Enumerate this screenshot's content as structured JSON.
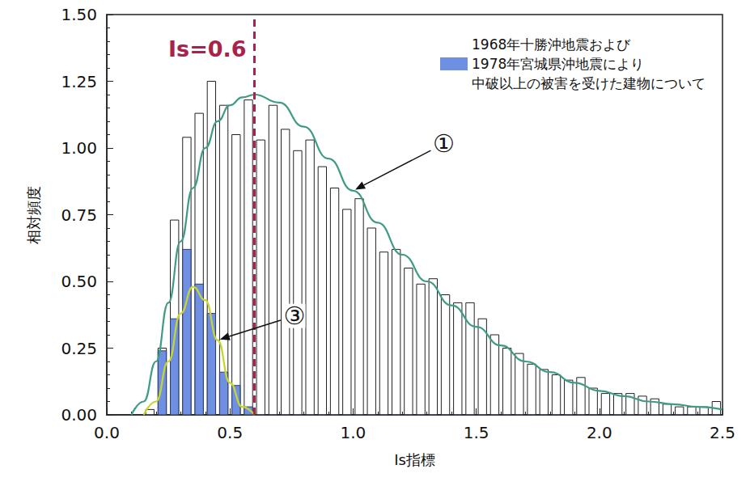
{
  "chart_data": {
    "type": "histogram",
    "bins": [
      0.15,
      0.2,
      0.25,
      0.3,
      0.35,
      0.4,
      0.45,
      0.5,
      0.55,
      0.6,
      0.65,
      0.7,
      0.75,
      0.8,
      0.85,
      0.9,
      0.95,
      1.0,
      1.05,
      1.1,
      1.15,
      1.2,
      1.25,
      1.3,
      1.35,
      1.4,
      1.45,
      1.5,
      1.55,
      1.6,
      1.65,
      1.7,
      1.75,
      1.8,
      1.85,
      1.9,
      1.95,
      2.0,
      2.05,
      2.1,
      2.15,
      2.2,
      2.25,
      2.3,
      2.35,
      2.4,
      2.45,
      2.5
    ],
    "series": [
      {
        "type": "histogram",
        "color": "#ffffff",
        "values": [
          0.02,
          0.25,
          0.73,
          1.04,
          1.13,
          1.25,
          1.16,
          1.05,
          1.18,
          1.03,
          1.16,
          1.07,
          0.99,
          1.03,
          0.93,
          0.85,
          0.77,
          0.81,
          0.7,
          0.61,
          0.62,
          0.55,
          0.49,
          0.51,
          0.45,
          0.42,
          0.42,
          0.36,
          0.3,
          0.25,
          0.23,
          0.19,
          0.17,
          0.15,
          0.13,
          0.14,
          0.1,
          0.08,
          0.08,
          0.08,
          0.07,
          0.06,
          0.04,
          0.03,
          0.03,
          0.03,
          0.05
        ]
      },
      {
        "type": "histogram",
        "name": "1968年十勝沖地震および\n1978年宮城県沖地震により\n中破以上の被害を受けた建物について",
        "color": "#6f8fe2",
        "values": [
          0,
          0.24,
          0.36,
          0.62,
          0.49,
          0.38,
          0.16,
          0.11,
          0.03,
          0,
          0,
          0,
          0,
          0,
          0,
          0,
          0,
          0,
          0,
          0,
          0,
          0,
          0,
          0,
          0,
          0,
          0,
          0,
          0,
          0,
          0,
          0,
          0,
          0,
          0,
          0,
          0,
          0,
          0,
          0,
          0,
          0,
          0,
          0,
          0,
          0,
          0
        ]
      },
      {
        "type": "line",
        "label": "①",
        "color": "#3f9b86",
        "x": [
          0.1,
          0.15,
          0.2,
          0.25,
          0.3,
          0.35,
          0.4,
          0.45,
          0.5,
          0.55,
          0.6,
          0.7,
          0.8,
          0.9,
          1.0,
          1.1,
          1.2,
          1.3,
          1.4,
          1.5,
          1.6,
          1.7,
          1.8,
          1.9,
          2.0,
          2.1,
          2.2,
          2.3,
          2.4,
          2.5
        ],
        "values": [
          0,
          0.05,
          0.2,
          0.42,
          0.65,
          0.85,
          1.0,
          1.1,
          1.16,
          1.19,
          1.2,
          1.17,
          1.08,
          0.96,
          0.84,
          0.72,
          0.6,
          0.5,
          0.41,
          0.33,
          0.26,
          0.2,
          0.16,
          0.12,
          0.09,
          0.07,
          0.05,
          0.04,
          0.03,
          0.02
        ]
      },
      {
        "type": "line",
        "label": "③",
        "color": "#c6d62e",
        "x": [
          0.15,
          0.2,
          0.25,
          0.3,
          0.35,
          0.4,
          0.45,
          0.5,
          0.55,
          0.6
        ],
        "values": [
          0,
          0.05,
          0.2,
          0.38,
          0.48,
          0.43,
          0.28,
          0.12,
          0.03,
          0
        ]
      }
    ],
    "vline": {
      "x": 0.6,
      "label": "Is=0.6",
      "color": "#a8234a",
      "line_style": "dashed"
    },
    "x_label": "Is指標",
    "y_label": "相対頻度",
    "xlim": [
      0,
      2.5
    ],
    "xticks": [
      {
        "value": 0,
        "label": "0.0"
      },
      {
        "value": 0.5,
        "label": "0.5"
      },
      {
        "value": 1,
        "label": "1.0"
      },
      {
        "value": 1.5,
        "label": "1.5"
      },
      {
        "value": 2,
        "label": "2.0"
      },
      {
        "value": 2.5,
        "label": "2.5"
      }
    ],
    "ylim": [
      0,
      1.5
    ],
    "yticks": [
      {
        "value": 0,
        "label": "0.00"
      },
      {
        "value": 0.25,
        "label": "0.25"
      },
      {
        "value": 0.5,
        "label": "0.50"
      },
      {
        "value": 0.75,
        "label": "0.75"
      },
      {
        "value": 1,
        "label": "1.00"
      },
      {
        "value": 1.25,
        "label": "1.25"
      },
      {
        "value": 1.5,
        "label": "1.50"
      }
    ],
    "grid": false,
    "legend": "upper right"
  }
}
